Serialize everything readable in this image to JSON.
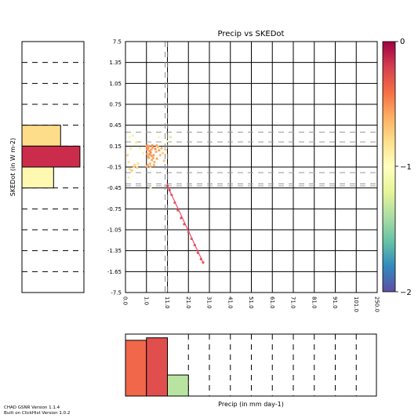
{
  "chart_data": [
    {
      "type": "scatter",
      "title": "Precip vs SKEDot",
      "xlabel": "",
      "ylabel": "",
      "x_tick_labels": [
        "0.0",
        "1.0",
        "11.0",
        "21.0",
        "31.0",
        "41.0",
        "51.0",
        "61.0",
        "71.0",
        "81.0",
        "91.0",
        "101.0",
        "250.0"
      ],
      "y_tick_labels": [
        "7.5",
        "1.35",
        "1.05",
        "0.75",
        "0.45",
        "0.15",
        "-0.15",
        "-0.45",
        "-0.75",
        "-1.05",
        "-1.35",
        "-1.65",
        "-7.5"
      ],
      "y_bin_edges": [
        7.5,
        1.35,
        1.05,
        0.75,
        0.45,
        0.15,
        -0.15,
        -0.45,
        -0.75,
        -1.05,
        -1.35,
        -1.65,
        -7.5
      ],
      "grid": true,
      "dashed_vertical_lines_x": [
        9.9,
        11.1
      ],
      "dashed_horizontal_lines_y": [
        0.35,
        0.21,
        -0.23,
        -0.39,
        -0.42
      ],
      "points": [
        {
          "x": 0.1,
          "y": 0.02,
          "c": 0.75
        },
        {
          "x": 0.15,
          "y": -0.08,
          "c": 0.8
        },
        {
          "x": 0.2,
          "y": -0.18,
          "c": 0.78
        },
        {
          "x": 0.25,
          "y": 0.12,
          "c": 0.85
        },
        {
          "x": 0.3,
          "y": -0.2,
          "c": 0.7
        },
        {
          "x": 0.35,
          "y": 0.3,
          "c": 0.9
        },
        {
          "x": 0.4,
          "y": -0.14,
          "c": 0.72
        },
        {
          "x": 0.45,
          "y": -0.12,
          "c": 0.77
        },
        {
          "x": 0.5,
          "y": 0.2,
          "c": 0.88
        },
        {
          "x": 0.55,
          "y": -0.16,
          "c": 0.76
        },
        {
          "x": 0.6,
          "y": -0.1,
          "c": 0.8
        },
        {
          "x": 0.7,
          "y": 0.12,
          "c": 0.9
        },
        {
          "x": 0.85,
          "y": 0.05,
          "c": 0.92
        },
        {
          "x": 0.2,
          "y": 0.28,
          "c": 1.1
        },
        {
          "x": 0.15,
          "y": -0.3,
          "c": 1.2
        },
        {
          "x": 1.1,
          "y": 0.14,
          "c": 0.55
        },
        {
          "x": 1.3,
          "y": 0.1,
          "c": 0.5
        },
        {
          "x": 1.5,
          "y": 0.04,
          "c": 0.58
        },
        {
          "x": 1.8,
          "y": 0.12,
          "c": 0.52
        },
        {
          "x": 2.1,
          "y": -0.02,
          "c": 0.6
        },
        {
          "x": 2.4,
          "y": 0.08,
          "c": 0.55
        },
        {
          "x": 2.7,
          "y": -0.1,
          "c": 0.62
        },
        {
          "x": 3.0,
          "y": 0.06,
          "c": 0.5
        },
        {
          "x": 3.3,
          "y": 0.1,
          "c": 0.57
        },
        {
          "x": 3.6,
          "y": -0.05,
          "c": 0.6
        },
        {
          "x": 4.0,
          "y": 0.13,
          "c": 0.53
        },
        {
          "x": 4.4,
          "y": 0.02,
          "c": 0.56
        },
        {
          "x": 4.8,
          "y": -0.08,
          "c": 0.61
        },
        {
          "x": 5.2,
          "y": 0.11,
          "c": 0.5
        },
        {
          "x": 5.6,
          "y": 0.07,
          "c": 0.59
        },
        {
          "x": 6.0,
          "y": -0.03,
          "c": 0.58
        },
        {
          "x": 6.5,
          "y": 0.14,
          "c": 0.63
        },
        {
          "x": 7.0,
          "y": 0.09,
          "c": 0.55
        },
        {
          "x": 7.6,
          "y": 0.02,
          "c": 0.66
        },
        {
          "x": 8.2,
          "y": 0.12,
          "c": 0.6
        },
        {
          "x": 8.8,
          "y": 0.05,
          "c": 0.72
        },
        {
          "x": 9.4,
          "y": -0.06,
          "c": 0.68
        },
        {
          "x": 10.0,
          "y": 0.1,
          "c": 0.7
        },
        {
          "x": 1.6,
          "y": -0.12,
          "c": 0.57
        },
        {
          "x": 2.2,
          "y": 0.15,
          "c": 0.54
        },
        {
          "x": 2.9,
          "y": -0.14,
          "c": 0.6
        },
        {
          "x": 3.8,
          "y": 0.16,
          "c": 0.52
        },
        {
          "x": 4.6,
          "y": -0.12,
          "c": 0.62
        },
        {
          "x": 5.9,
          "y": 0.16,
          "c": 0.58
        },
        {
          "x": 1.2,
          "y": -0.14,
          "c": 0.6
        },
        {
          "x": 1.4,
          "y": 0.16,
          "c": 0.54
        },
        {
          "x": 1.9,
          "y": 0.0,
          "c": 0.55
        },
        {
          "x": 2.6,
          "y": 0.03,
          "c": 0.51
        },
        {
          "x": 3.5,
          "y": 0.01,
          "c": 0.55
        },
        {
          "x": 4.2,
          "y": -0.02,
          "c": 0.58
        },
        {
          "x": 12.5,
          "y": 0.28,
          "c": 1.25
        },
        {
          "x": 10.8,
          "y": 0.22,
          "c": 1.05
        },
        {
          "x": 7.0,
          "y": 0.28,
          "c": 0.95
        },
        {
          "x": 3.0,
          "y": -0.45,
          "c": 1.2
        },
        {
          "x": 11.0,
          "y": -0.42,
          "c": 0.2
        },
        {
          "x": 12.0,
          "y": -0.48,
          "c": 0.25
        },
        {
          "x": 13.0,
          "y": -0.55,
          "c": 0.3
        },
        {
          "x": 14.5,
          "y": -0.66,
          "c": 0.3
        },
        {
          "x": 16.0,
          "y": -0.77,
          "c": 0.3
        },
        {
          "x": 17.5,
          "y": -0.88,
          "c": 0.3
        },
        {
          "x": 19.0,
          "y": -0.97,
          "c": 0.3
        },
        {
          "x": 21.0,
          "y": -1.08,
          "c": 0.3
        },
        {
          "x": 22.5,
          "y": -1.18,
          "c": 0.3
        },
        {
          "x": 24.0,
          "y": -1.27,
          "c": 0.3
        },
        {
          "x": 25.5,
          "y": -1.38,
          "c": 0.3
        },
        {
          "x": 27.0,
          "y": -1.47,
          "c": 0.3
        },
        {
          "x": 28.0,
          "y": -1.52,
          "c": 0.3
        }
      ],
      "line_segment": [
        {
          "x": 11.0,
          "y": -0.42
        },
        {
          "x": 28.0,
          "y": -1.52
        }
      ],
      "line_color": "#f0467a"
    },
    {
      "type": "colorbar",
      "tick_labels": [
        "0",
        "−1",
        "−2"
      ],
      "colormap": "Spectral"
    },
    {
      "type": "bar",
      "orientation": "horizontal",
      "ylabel": "SKEDot (in W m-2)",
      "bins": [
        "0.45..0.15",
        "0.15..-0.15",
        "-0.15..-0.45"
      ],
      "values": [
        0.44,
        0.66,
        0.36
      ],
      "colors": [
        "#fedd8a",
        "#cc2c4b",
        "#fff8b1"
      ]
    },
    {
      "type": "bar",
      "orientation": "vertical",
      "xlabel": "Precip (in mm day-1)",
      "bins": [
        "0.0..1.0",
        "1.0..11.0",
        "11.0..21.0"
      ],
      "values": [
        0.9,
        0.94,
        0.34
      ],
      "colors": [
        "#f0674a",
        "#e04f4e",
        "#b9e3a0"
      ]
    }
  ],
  "footer": {
    "line1": "CHAD GSNR Version 1.1.4",
    "line2": "Built on ClickHist Version 1.0.2"
  }
}
